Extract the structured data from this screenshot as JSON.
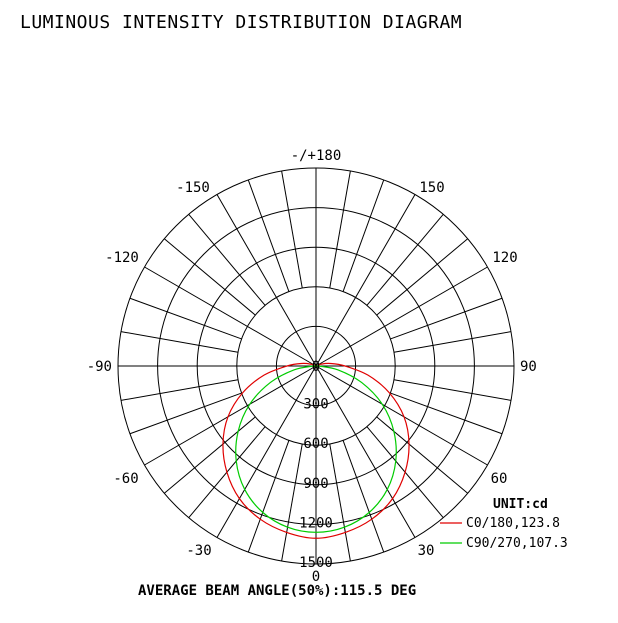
{
  "title": "LUMINOUS INTENSITY DISTRIBUTION DIAGRAM",
  "footer": "AVERAGE BEAM ANGLE(50%):115.5 DEG",
  "chart_data": {
    "type": "polar",
    "unit_label": "UNIT:cd",
    "radial_ticks": [
      "0",
      "300",
      "600",
      "900",
      "1200",
      "1500"
    ],
    "radial_max": 1500,
    "angle_labels": [
      {
        "angle": 180,
        "text": "-/+180"
      },
      {
        "angle": 150,
        "text": "150"
      },
      {
        "angle": -150,
        "text": "-150"
      },
      {
        "angle": 120,
        "text": "120"
      },
      {
        "angle": -120,
        "text": "-120"
      },
      {
        "angle": 90,
        "text": "90"
      },
      {
        "angle": -90,
        "text": "-90"
      },
      {
        "angle": 60,
        "text": "60"
      },
      {
        "angle": -60,
        "text": "-60"
      },
      {
        "angle": 30,
        "text": "30"
      },
      {
        "angle": -30,
        "text": "-30"
      },
      {
        "angle": 0,
        "text": "0"
      }
    ],
    "grid": true,
    "legend_position": "bottom-right",
    "series": [
      {
        "name": "C0/180,123.8",
        "color": "#e00000",
        "angles": [
          0,
          10,
          20,
          30,
          40,
          50,
          60,
          70,
          80,
          90,
          100,
          110,
          120
        ],
        "values": [
          1305,
          1280,
          1235,
          1160,
          1050,
          920,
          770,
          590,
          400,
          220,
          110,
          40,
          0
        ]
      },
      {
        "name": "C90/270,107.3",
        "color": "#00cc00",
        "angles": [
          0,
          10,
          20,
          30,
          40,
          50,
          60,
          70,
          80,
          90,
          100,
          110,
          120
        ],
        "values": [
          1260,
          1240,
          1180,
          1080,
          940,
          770,
          580,
          370,
          170,
          20,
          0,
          0,
          0
        ]
      }
    ]
  }
}
